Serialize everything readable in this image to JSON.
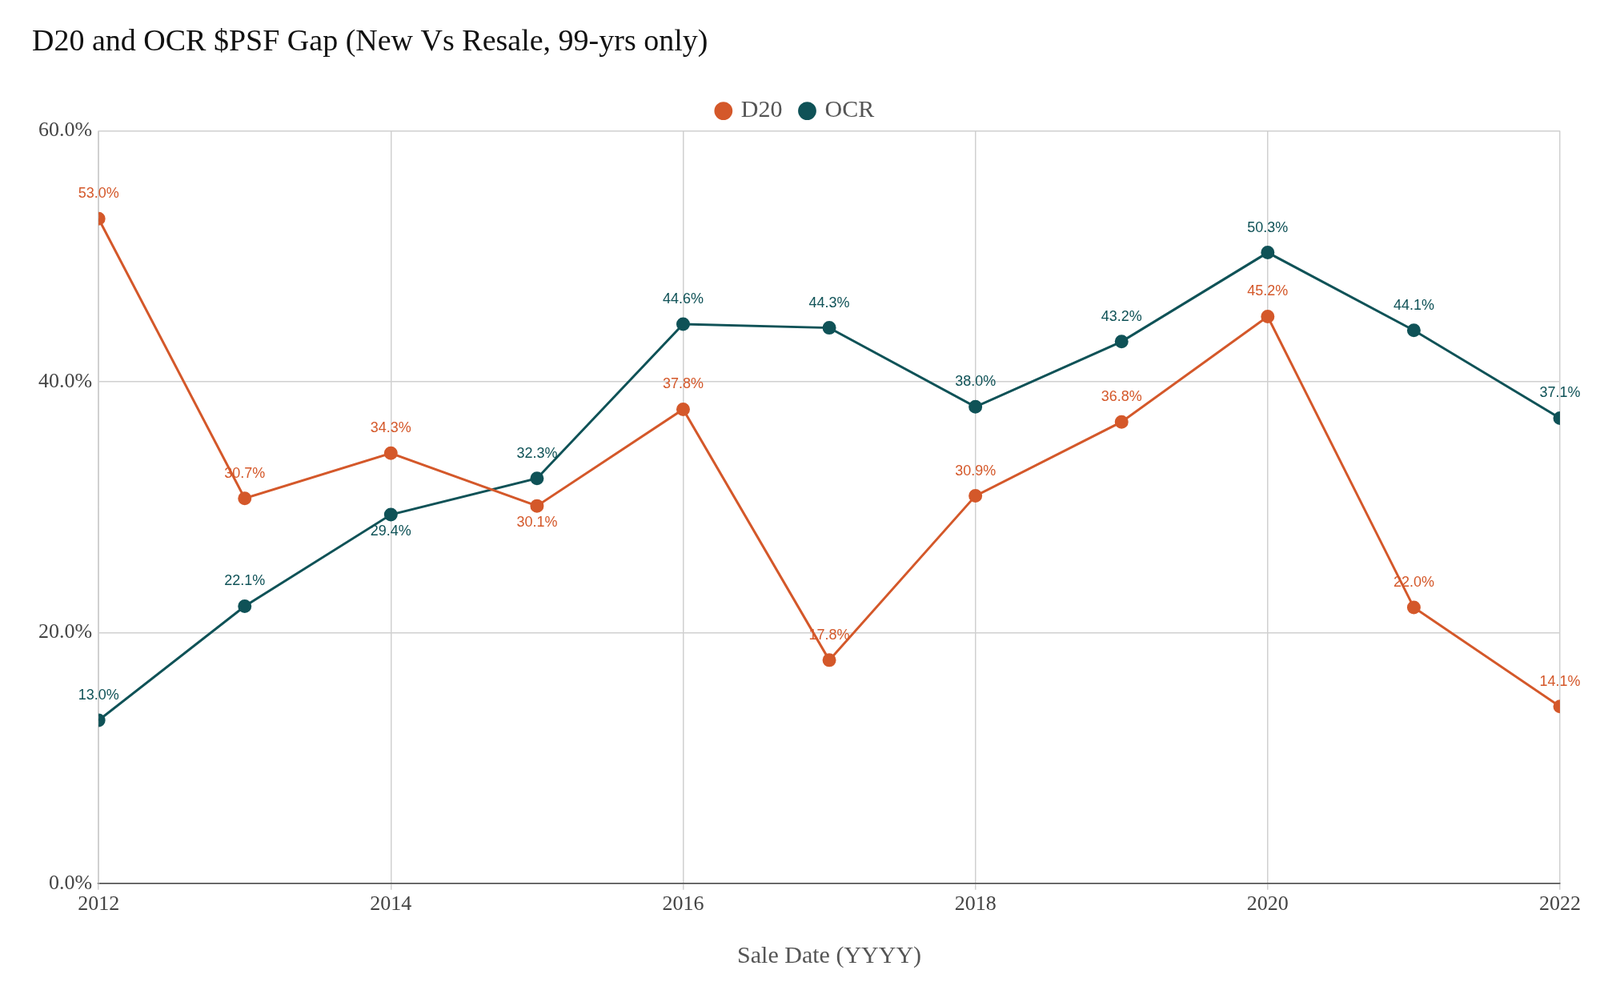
{
  "chart_data": {
    "type": "line",
    "title": "D20 and OCR $PSF Gap (New Vs Resale, 99-yrs only)",
    "x_label": "Sale Date (YYYY)",
    "x": [
      2012,
      2013,
      2014,
      2015,
      2016,
      2017,
      2018,
      2019,
      2020,
      2021,
      2022
    ],
    "series": [
      {
        "name": "D20",
        "color": "#d4582a",
        "values": [
          53.0,
          30.7,
          34.3,
          30.1,
          37.8,
          17.8,
          30.9,
          36.8,
          45.2,
          22.0,
          14.1
        ],
        "value_labels": [
          "53.0%",
          "30.7%",
          "34.3%",
          "30.1%",
          "37.8%",
          "17.8%",
          "30.9%",
          "36.8%",
          "45.2%",
          "22.0%",
          "14.1%"
        ]
      },
      {
        "name": "OCR",
        "color": "#0f5257",
        "values": [
          13.0,
          22.1,
          29.4,
          32.3,
          44.6,
          44.3,
          38.0,
          43.2,
          50.3,
          44.1,
          37.1
        ],
        "value_labels": [
          "13.0%",
          "22.1%",
          "29.4%",
          "32.3%",
          "44.6%",
          "44.3%",
          "38.0%",
          "43.2%",
          "50.3%",
          "44.1%",
          "37.1%"
        ]
      }
    ],
    "xlim": [
      2012,
      2022
    ],
    "xticks": [
      2012,
      2014,
      2016,
      2018,
      2020,
      2022
    ],
    "ylim": [
      0,
      60
    ],
    "yticks": [
      {
        "value": 0,
        "label": "0.0%"
      },
      {
        "value": 20,
        "label": "20.0%"
      },
      {
        "value": 40,
        "label": "40.0%"
      },
      {
        "value": 60,
        "label": "60.0%"
      }
    ],
    "grid": true,
    "legend": "top",
    "data_labels": true,
    "marker": "circle"
  }
}
